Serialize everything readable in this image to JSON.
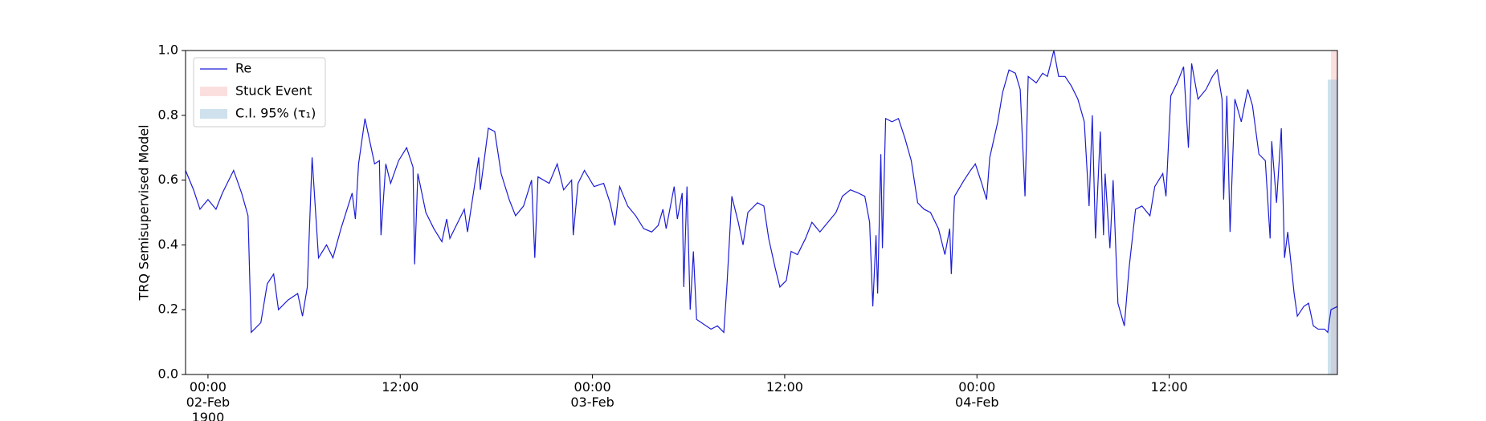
{
  "chart_data": {
    "type": "line",
    "ylabel": "TRQ Semisupervised Model",
    "legend": "upper left",
    "x": [
      "1900-02-01 22:36",
      "1900-02-01 23:06",
      "1900-02-01 23:30",
      "1900-02-02 00:00",
      "1900-02-02 00:30",
      "1900-02-02 00:54",
      "1900-02-02 01:36",
      "1900-02-02 02:06",
      "1900-02-02 02:30",
      "1900-02-02 02:42",
      "1900-02-02 03:18",
      "1900-02-02 03:42",
      "1900-02-02 04:06",
      "1900-02-02 04:24",
      "1900-02-02 05:00",
      "1900-02-02 05:36",
      "1900-02-02 05:54",
      "1900-02-02 06:12",
      "1900-02-02 06:30",
      "1900-02-02 06:54",
      "1900-02-02 07:24",
      "1900-02-02 07:48",
      "1900-02-02 08:18",
      "1900-02-02 09:00",
      "1900-02-02 09:12",
      "1900-02-02 09:24",
      "1900-02-02 09:48",
      "1900-02-02 10:24",
      "1900-02-02 10:42",
      "1900-02-02 10:48",
      "1900-02-02 11:06",
      "1900-02-02 11:24",
      "1900-02-02 11:54",
      "1900-02-02 12:24",
      "1900-02-02 12:48",
      "1900-02-02 12:54",
      "1900-02-02 13:06",
      "1900-02-02 13:36",
      "1900-02-02 14:06",
      "1900-02-02 14:36",
      "1900-02-02 14:54",
      "1900-02-02 15:06",
      "1900-02-02 15:36",
      "1900-02-02 16:00",
      "1900-02-02 16:12",
      "1900-02-02 16:36",
      "1900-02-02 16:54",
      "1900-02-02 17:00",
      "1900-02-02 17:30",
      "1900-02-02 17:54",
      "1900-02-02 18:18",
      "1900-02-02 18:48",
      "1900-02-02 19:12",
      "1900-02-02 19:42",
      "1900-02-02 20:12",
      "1900-02-02 20:24",
      "1900-02-02 20:36",
      "1900-02-02 21:18",
      "1900-02-02 21:48",
      "1900-02-02 22:12",
      "1900-02-02 22:42",
      "1900-02-02 22:48",
      "1900-02-02 23:06",
      "1900-02-02 23:30",
      "1900-02-03 00:06",
      "1900-02-03 00:42",
      "1900-02-03 01:06",
      "1900-02-03 01:24",
      "1900-02-03 01:42",
      "1900-02-03 02:12",
      "1900-02-03 02:42",
      "1900-02-03 03:12",
      "1900-02-03 03:42",
      "1900-02-03 04:06",
      "1900-02-03 04:24",
      "1900-02-03 04:36",
      "1900-02-03 05:06",
      "1900-02-03 05:18",
      "1900-02-03 05:36",
      "1900-02-03 05:42",
      "1900-02-03 05:54",
      "1900-02-03 06:06",
      "1900-02-03 06:18",
      "1900-02-03 06:30",
      "1900-02-03 06:48",
      "1900-02-03 07:24",
      "1900-02-03 07:48",
      "1900-02-03 08:12",
      "1900-02-03 08:24",
      "1900-02-03 08:42",
      "1900-02-03 09:06",
      "1900-02-03 09:24",
      "1900-02-03 09:42",
      "1900-02-03 10:18",
      "1900-02-03 10:42",
      "1900-02-03 11:00",
      "1900-02-03 11:24",
      "1900-02-03 11:42",
      "1900-02-03 12:06",
      "1900-02-03 12:24",
      "1900-02-03 12:48",
      "1900-02-03 13:18",
      "1900-02-03 13:42",
      "1900-02-03 14:12",
      "1900-02-03 14:42",
      "1900-02-03 15:12",
      "1900-02-03 15:36",
      "1900-02-03 16:06",
      "1900-02-03 16:36",
      "1900-02-03 17:00",
      "1900-02-03 17:18",
      "1900-02-03 17:30",
      "1900-02-03 17:42",
      "1900-02-03 17:48",
      "1900-02-03 18:00",
      "1900-02-03 18:06",
      "1900-02-03 18:18",
      "1900-02-03 18:42",
      "1900-02-03 19:06",
      "1900-02-03 19:30",
      "1900-02-03 19:54",
      "1900-02-03 20:18",
      "1900-02-03 20:42",
      "1900-02-03 21:06",
      "1900-02-03 21:36",
      "1900-02-03 22:00",
      "1900-02-03 22:18",
      "1900-02-03 22:24",
      "1900-02-03 22:36",
      "1900-02-03 23:12",
      "1900-02-03 23:36",
      "1900-02-03 23:54",
      "1900-02-04 00:18",
      "1900-02-04 00:36",
      "1900-02-04 00:48",
      "1900-02-04 01:18",
      "1900-02-04 01:36",
      "1900-02-04 02:00",
      "1900-02-04 02:24",
      "1900-02-04 02:42",
      "1900-02-04 03:00",
      "1900-02-04 03:12",
      "1900-02-04 03:42",
      "1900-02-04 04:06",
      "1900-02-04 04:24",
      "1900-02-04 04:48",
      "1900-02-04 05:06",
      "1900-02-04 05:30",
      "1900-02-04 05:54",
      "1900-02-04 06:18",
      "1900-02-04 06:42",
      "1900-02-04 07:00",
      "1900-02-04 07:12",
      "1900-02-04 07:24",
      "1900-02-04 07:42",
      "1900-02-04 07:54",
      "1900-02-04 08:00",
      "1900-02-04 08:18",
      "1900-02-04 08:30",
      "1900-02-04 08:48",
      "1900-02-04 09:12",
      "1900-02-04 09:30",
      "1900-02-04 09:54",
      "1900-02-04 10:18",
      "1900-02-04 10:48",
      "1900-02-04 11:06",
      "1900-02-04 11:36",
      "1900-02-04 11:48",
      "1900-02-04 12:06",
      "1900-02-04 12:30",
      "1900-02-04 12:54",
      "1900-02-04 13:12",
      "1900-02-04 13:24",
      "1900-02-04 13:48",
      "1900-02-04 14:18",
      "1900-02-04 14:42",
      "1900-02-04 15:00",
      "1900-02-04 15:18",
      "1900-02-04 15:24",
      "1900-02-04 15:36",
      "1900-02-04 15:48",
      "1900-02-04 16:06",
      "1900-02-04 16:30",
      "1900-02-04 16:54",
      "1900-02-04 17:12",
      "1900-02-04 17:36",
      "1900-02-04 18:00",
      "1900-02-04 18:18",
      "1900-02-04 18:24",
      "1900-02-04 18:42",
      "1900-02-04 19:00",
      "1900-02-04 19:12",
      "1900-02-04 19:24",
      "1900-02-04 19:48",
      "1900-02-04 20:00",
      "1900-02-04 20:24",
      "1900-02-04 20:42",
      "1900-02-04 21:00",
      "1900-02-04 21:18",
      "1900-02-04 21:42",
      "1900-02-04 21:54",
      "1900-02-04 22:06",
      "1900-02-04 22:30"
    ],
    "series": [
      {
        "name": "Re",
        "color": "#1c1cd6",
        "values": [
          0.63,
          0.57,
          0.51,
          0.54,
          0.51,
          0.56,
          0.63,
          0.56,
          0.49,
          0.13,
          0.16,
          0.28,
          0.31,
          0.2,
          0.23,
          0.25,
          0.18,
          0.27,
          0.67,
          0.36,
          0.4,
          0.36,
          0.45,
          0.56,
          0.48,
          0.65,
          0.79,
          0.65,
          0.66,
          0.43,
          0.65,
          0.59,
          0.66,
          0.7,
          0.64,
          0.34,
          0.62,
          0.5,
          0.45,
          0.41,
          0.48,
          0.42,
          0.47,
          0.51,
          0.44,
          0.57,
          0.67,
          0.57,
          0.76,
          0.75,
          0.62,
          0.54,
          0.49,
          0.52,
          0.6,
          0.36,
          0.61,
          0.59,
          0.65,
          0.57,
          0.6,
          0.43,
          0.59,
          0.63,
          0.58,
          0.59,
          0.53,
          0.46,
          0.58,
          0.52,
          0.49,
          0.45,
          0.44,
          0.46,
          0.51,
          0.45,
          0.58,
          0.48,
          0.56,
          0.27,
          0.58,
          0.2,
          0.38,
          0.17,
          0.16,
          0.14,
          0.15,
          0.13,
          0.28,
          0.55,
          0.47,
          0.4,
          0.5,
          0.53,
          0.52,
          0.42,
          0.33,
          0.27,
          0.29,
          0.38,
          0.37,
          0.42,
          0.47,
          0.44,
          0.47,
          0.5,
          0.55,
          0.57,
          0.56,
          0.55,
          0.47,
          0.21,
          0.43,
          0.25,
          0.68,
          0.39,
          0.79,
          0.78,
          0.79,
          0.73,
          0.66,
          0.53,
          0.51,
          0.5,
          0.45,
          0.37,
          0.45,
          0.31,
          0.55,
          0.6,
          0.63,
          0.65,
          0.59,
          0.54,
          0.67,
          0.78,
          0.87,
          0.94,
          0.93,
          0.88,
          0.55,
          0.92,
          0.9,
          0.93,
          0.92,
          1.0,
          0.92,
          0.92,
          0.89,
          0.85,
          0.78,
          0.52,
          0.8,
          0.42,
          0.75,
          0.43,
          0.62,
          0.39,
          0.6,
          0.22,
          0.15,
          0.33,
          0.51,
          0.52,
          0.49,
          0.58,
          0.62,
          0.55,
          0.86,
          0.9,
          0.95,
          0.7,
          0.96,
          0.85,
          0.88,
          0.92,
          0.94,
          0.85,
          0.54,
          0.86,
          0.44,
          0.85,
          0.78,
          0.88,
          0.83,
          0.68,
          0.66,
          0.42,
          0.72,
          0.53,
          0.76,
          0.36,
          0.44,
          0.25,
          0.18,
          0.21,
          0.22,
          0.15,
          0.14,
          0.14,
          0.13,
          0.2,
          0.21
        ]
      }
    ],
    "spans": [
      {
        "name": "Stuck Event",
        "color": "#f8c0c0",
        "x": [
          "1900-02-04 22:06",
          "1900-02-04 22:30"
        ],
        "y": [
          0,
          1
        ]
      },
      {
        "name": "C.I. 95% (τ₁)",
        "color": "#9ec4dc",
        "x": [
          "1900-02-04 21:54",
          "1900-02-04 22:30"
        ],
        "y": [
          0,
          0.91
        ]
      }
    ],
    "xlim": [
      "1900-02-01 22:36",
      "1900-02-04 22:30"
    ],
    "xticks": [
      {
        "value": "1900-02-02 00:00",
        "label": [
          "00:00",
          "02-Feb",
          "1900"
        ]
      },
      {
        "value": "1900-02-02 12:00",
        "label": [
          "12:00"
        ]
      },
      {
        "value": "1900-02-03 00:00",
        "label": [
          "00:00",
          "03-Feb"
        ]
      },
      {
        "value": "1900-02-03 12:00",
        "label": [
          "12:00"
        ]
      },
      {
        "value": "1900-02-04 00:00",
        "label": [
          "00:00",
          "04-Feb"
        ]
      },
      {
        "value": "1900-02-04 12:00",
        "label": [
          "12:00"
        ]
      }
    ],
    "ylim": [
      0,
      1
    ],
    "yticks": [
      {
        "value": 0,
        "label": "0.0"
      },
      0.2,
      0.4,
      0.6,
      0.8,
      {
        "value": 1,
        "label": "1.0"
      }
    ]
  }
}
